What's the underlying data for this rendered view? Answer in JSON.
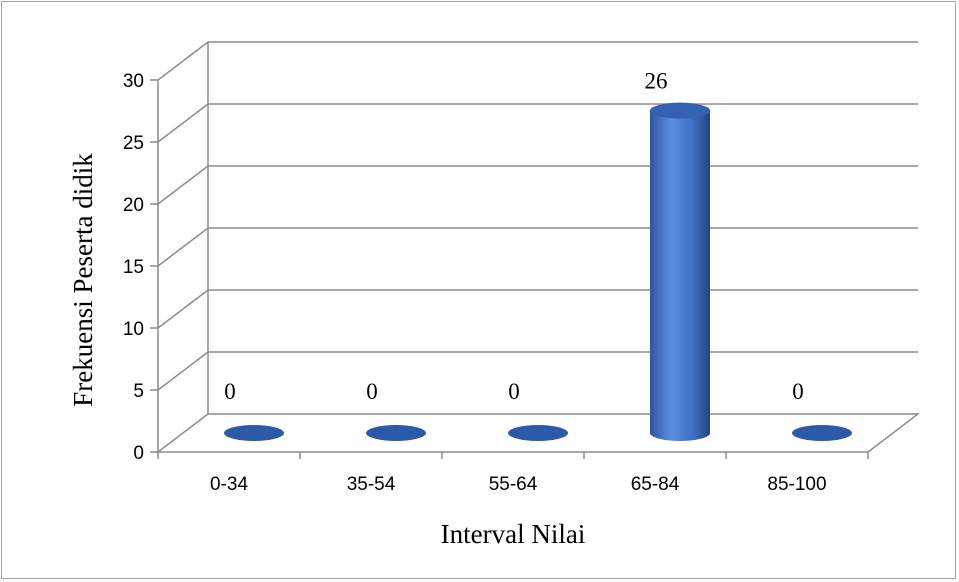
{
  "chart_data": {
    "type": "bar",
    "categories": [
      "0-34",
      "35-54",
      "55-64",
      "65-84",
      "85-100"
    ],
    "values": [
      0,
      0,
      0,
      26,
      0
    ],
    "data_labels": [
      "0",
      "0",
      "0",
      "26",
      "0"
    ],
    "title": "",
    "xlabel": "Interval Nilai",
    "ylabel": "Frekuensi Peserta didik",
    "ylim": [
      0,
      30
    ],
    "yticks": [
      "0",
      "5",
      "10",
      "15",
      "20",
      "25",
      "30"
    ],
    "grid": true,
    "style": "3d-cylinder",
    "bar_color": "#3f6fc4"
  }
}
